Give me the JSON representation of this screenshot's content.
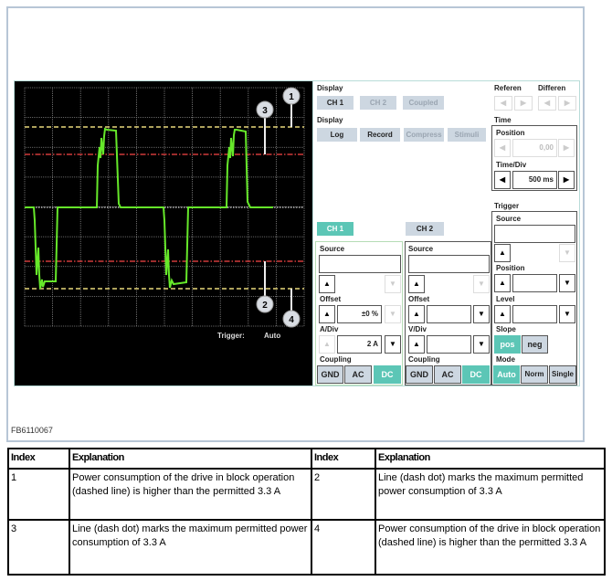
{
  "figure_id": "FB6110067",
  "scope": {
    "trigger_label": "Trigger:",
    "trigger_value": "Auto",
    "callouts": [
      "1",
      "2",
      "3",
      "4"
    ],
    "colors": {
      "trace": "#66e82a",
      "limit_dashed": "#e8d77a",
      "limit_dashdot": "#d03a3a",
      "zero": "#ffffff"
    }
  },
  "display1": {
    "label": "Display",
    "ch1": "CH 1",
    "ch2": "CH 2",
    "coupled": "Coupled"
  },
  "display2": {
    "label": "Display",
    "log": "Log",
    "record": "Record",
    "compress": "Compress",
    "stimuli": "Stimuli"
  },
  "referen": "Referen",
  "differen": "Differen",
  "time": {
    "label": "Time",
    "position_label": "Position",
    "position_value": "0,00",
    "timediv_label": "Time/Div",
    "timediv_value": "500 ms"
  },
  "tabs": {
    "ch1": "CH 1",
    "ch2": "CH 2"
  },
  "ch1": {
    "source": "Source",
    "offset": "Offset",
    "offset_value": "±0 %",
    "div": "A/Div",
    "div_value": "2 A",
    "coupling": "Coupling",
    "gnd": "GND",
    "ac": "AC",
    "dc": "DC"
  },
  "ch2": {
    "source": "Source",
    "offset": "Offset",
    "div": "V/Div",
    "coupling": "Coupling",
    "gnd": "GND",
    "ac": "AC",
    "dc": "DC"
  },
  "trigger": {
    "label": "Trigger",
    "source": "Source",
    "position": "Position",
    "level": "Level",
    "slope": "Slope",
    "pos": "pos",
    "neg": "neg",
    "mode": "Mode",
    "auto": "Auto",
    "norm": "Norm",
    "single": "Single"
  },
  "table": {
    "headers": [
      "Index",
      "Explanation",
      "Index",
      "Explanation"
    ],
    "rows": [
      [
        "1",
        "Power consumption of the drive in block operation (dashed line) is higher than the permitted 3.3 A",
        "2",
        "Line (dash dot) marks the maximum permitted power consumption of 3.3 A"
      ],
      [
        "3",
        "Line (dash dot) marks the maximum permitted power consumption of 3.3 A",
        "4",
        "Power consumption of the drive in block operation (dashed line) is higher than the permitted 3.3 A"
      ]
    ]
  }
}
